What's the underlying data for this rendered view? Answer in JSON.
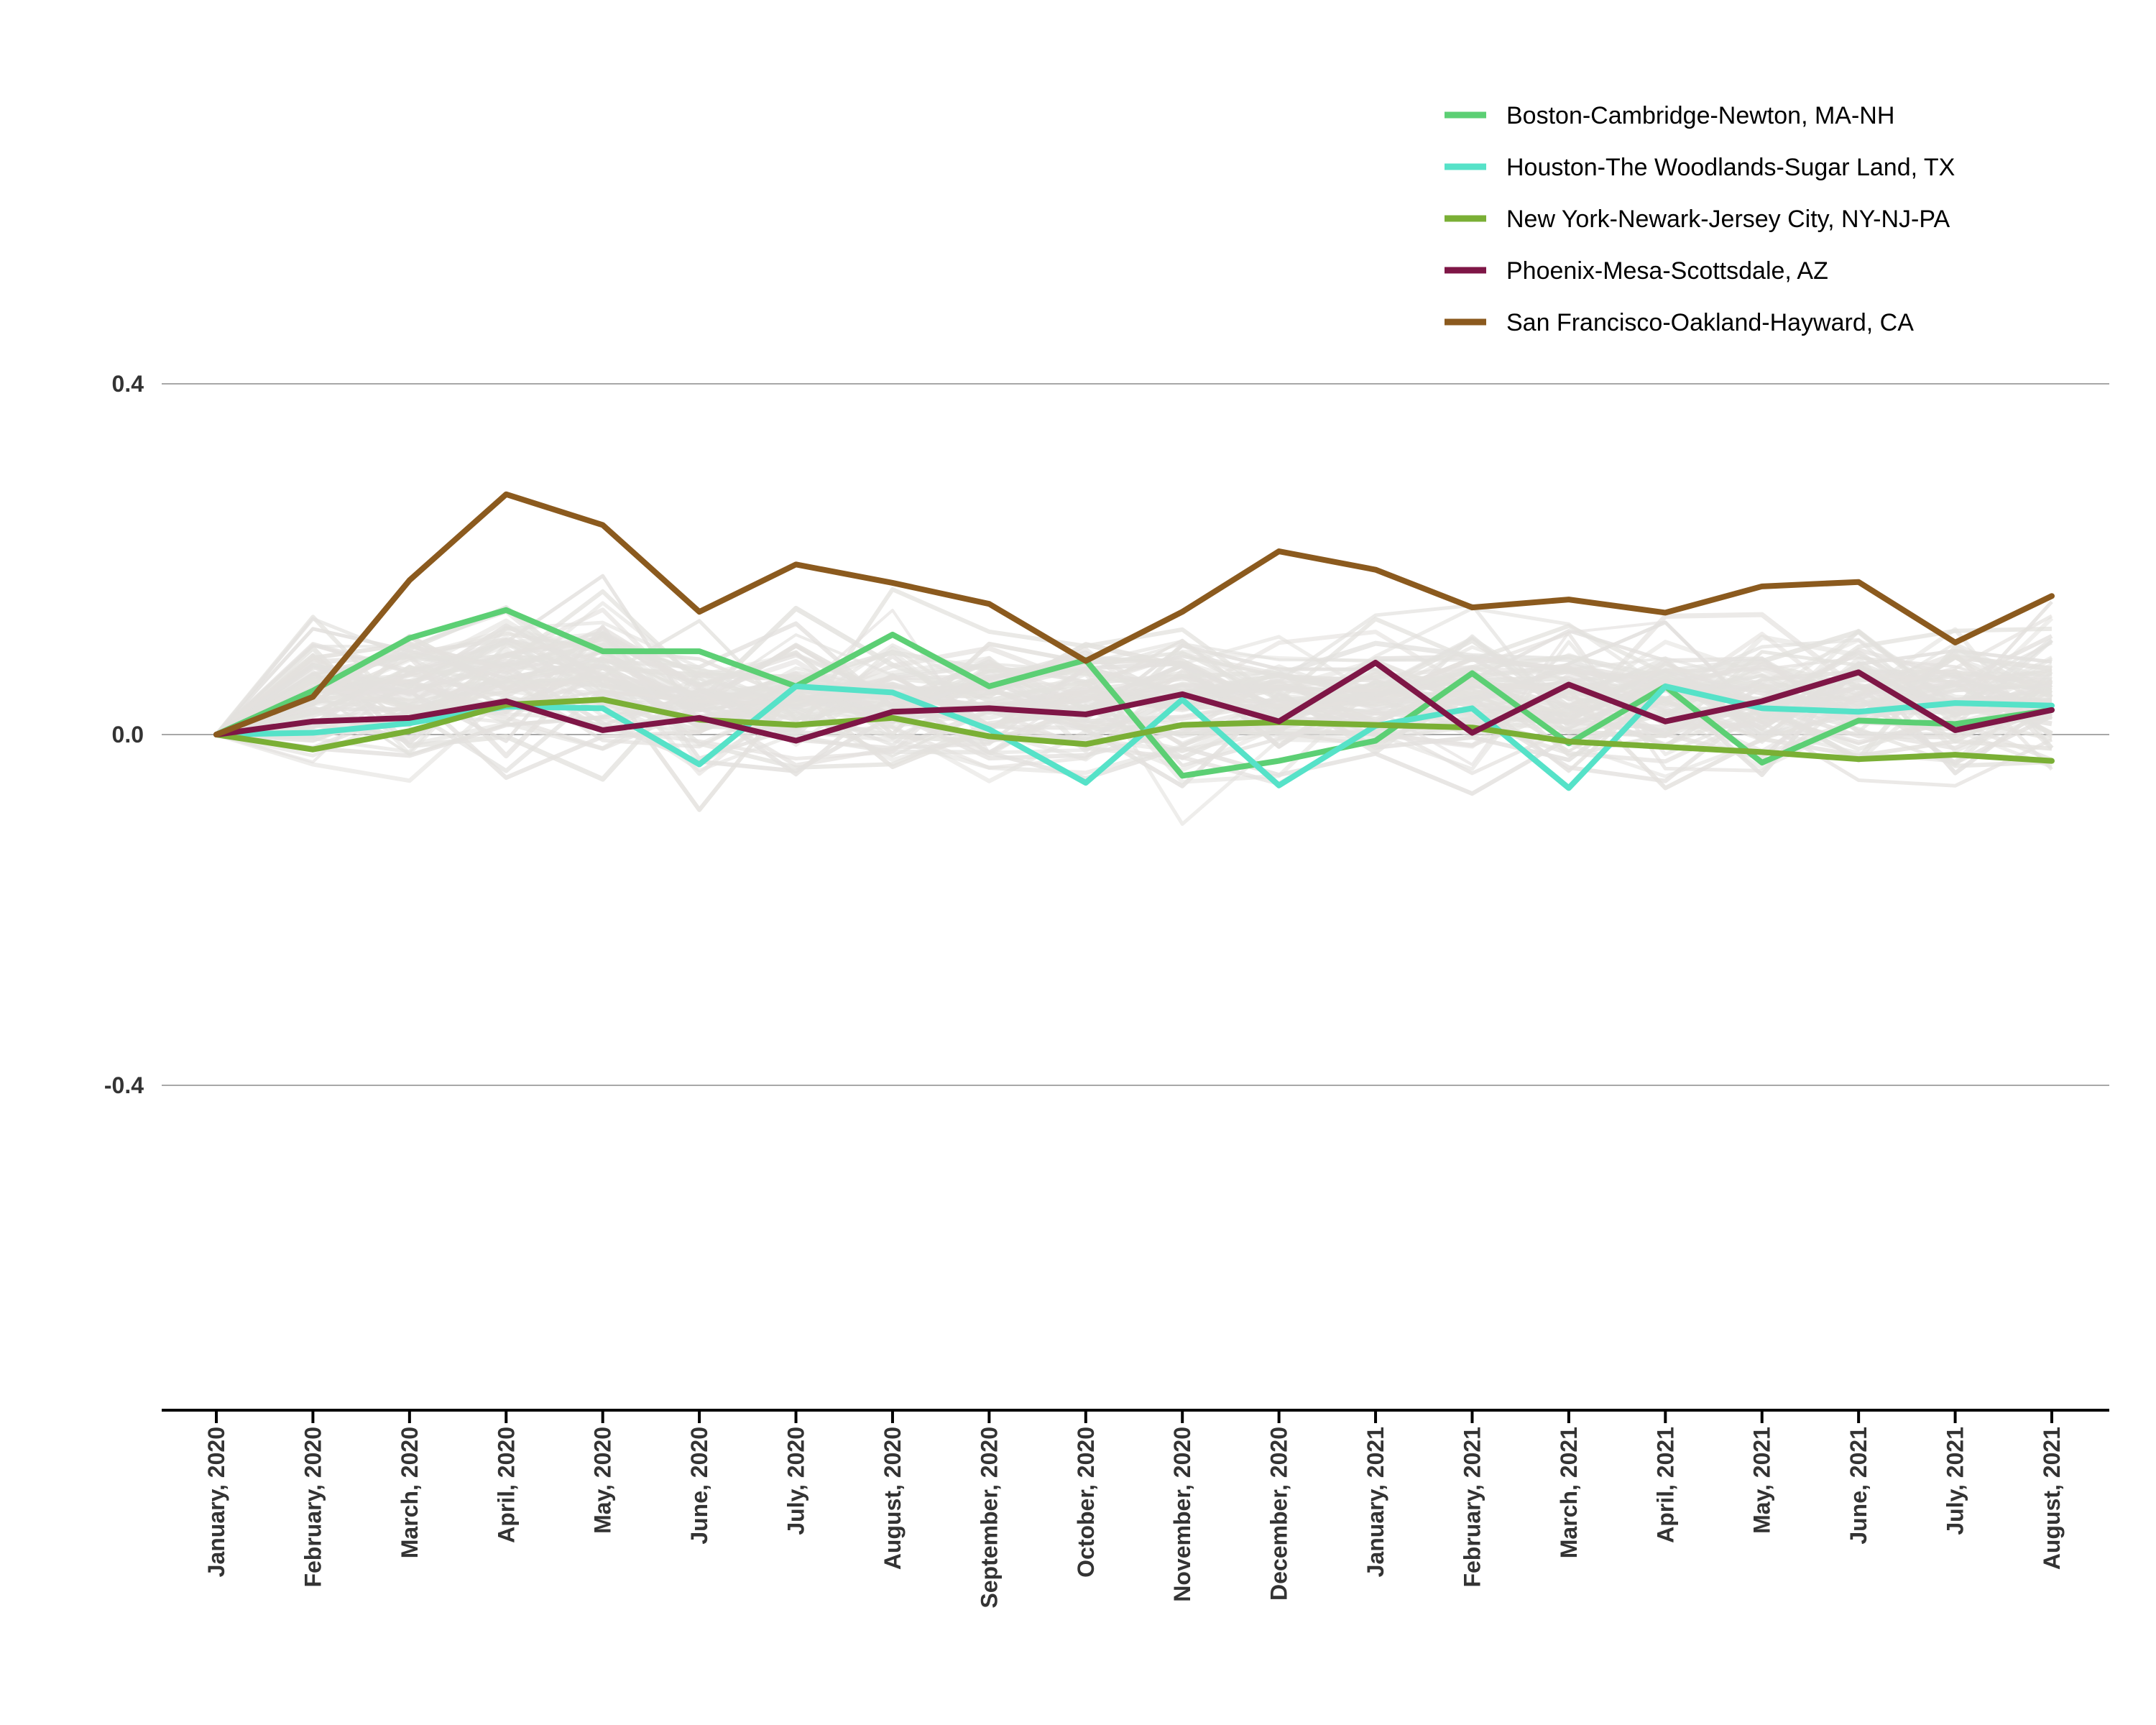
{
  "chart_data": {
    "type": "line",
    "title": "",
    "xlabel": "",
    "ylabel": "",
    "x": [
      "January, 2020",
      "February, 2020",
      "March, 2020",
      "April, 2020",
      "May, 2020",
      "June, 2020",
      "July, 2020",
      "August, 2020",
      "September, 2020",
      "October, 2020",
      "November, 2020",
      "December, 2020",
      "January, 2021",
      "February, 2021",
      "March, 2021",
      "April, 2021",
      "May, 2021",
      "June, 2021",
      "July, 2021",
      "August, 2021"
    ],
    "ylim": [
      -0.77,
      0.83
    ],
    "yticks": [
      {
        "value": 0.4,
        "label": "0.4"
      },
      {
        "value": 0.0,
        "label": "0.0"
      },
      {
        "value": -0.4,
        "label": "-0.4"
      }
    ],
    "grid": "horizontal at ticks",
    "legend_position": "top-right",
    "background_series_color": "#e3e1de",
    "series": [
      {
        "name": "Boston-Cambridge-Newton, MA-NH",
        "color": "#5ccf74",
        "values": [
          0.0,
          0.05,
          0.11,
          0.142,
          0.095,
          0.095,
          0.055,
          0.114,
          0.055,
          0.085,
          -0.047,
          -0.03,
          -0.007,
          0.07,
          -0.01,
          0.055,
          -0.032,
          0.016,
          0.012,
          0.028
        ]
      },
      {
        "name": "Houston-The Woodlands-Sugar Land, TX",
        "color": "#56e2c8",
        "values": [
          0.0,
          0.002,
          0.013,
          0.032,
          0.03,
          -0.034,
          0.055,
          0.048,
          0.006,
          -0.055,
          0.04,
          -0.058,
          0.01,
          0.03,
          -0.061,
          0.055,
          0.03,
          0.026,
          0.036,
          0.033
        ]
      },
      {
        "name": "New York-Newark-Jersey City, NY-NJ-PA",
        "color": "#7aaf35",
        "values": [
          0.0,
          -0.017,
          0.004,
          0.034,
          0.04,
          0.017,
          0.011,
          0.019,
          -0.002,
          -0.011,
          0.011,
          0.014,
          0.011,
          0.008,
          -0.008,
          -0.014,
          -0.02,
          -0.028,
          -0.023,
          -0.03
        ]
      },
      {
        "name": "Phoenix-Mesa-Scottsdale, AZ",
        "color": "#7e1646",
        "values": [
          0.0,
          0.015,
          0.019,
          0.038,
          0.005,
          0.019,
          -0.007,
          0.026,
          0.03,
          0.023,
          0.046,
          0.015,
          0.082,
          0.002,
          0.057,
          0.015,
          0.038,
          0.071,
          0.005,
          0.028
        ]
      },
      {
        "name": "San Francisco-Oakland-Hayward, CA",
        "color": "#8b5a1e",
        "values": [
          0.0,
          0.043,
          0.176,
          0.274,
          0.239,
          0.14,
          0.194,
          0.173,
          0.149,
          0.084,
          0.14,
          0.209,
          0.188,
          0.145,
          0.154,
          0.139,
          0.169,
          0.174,
          0.105,
          0.158
        ]
      }
    ]
  }
}
